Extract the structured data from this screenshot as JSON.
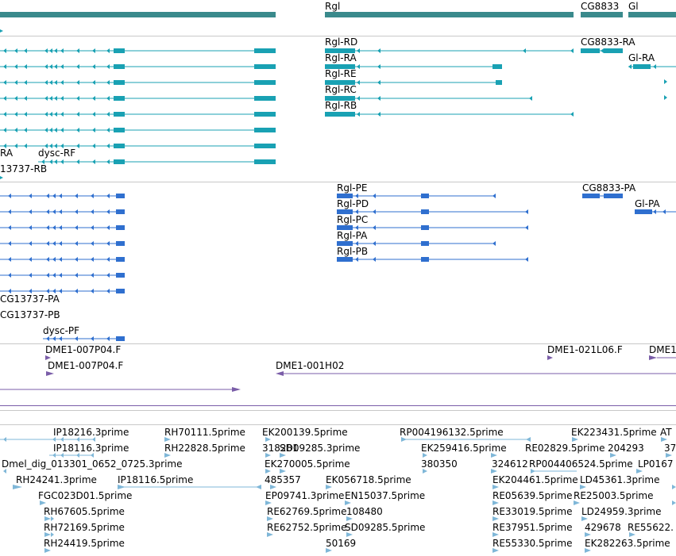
{
  "colors": {
    "gene_span": "#3a8a8c",
    "transcript": "#19a1b3",
    "protein": "#2f6fcf",
    "clone": "#7a5da8",
    "est": "#7fb7d8",
    "separator": "#c8c8c8"
  },
  "tracks": {
    "genes": {
      "labels": [
        "Rgl",
        "CG8833",
        "Gl"
      ]
    },
    "transcripts": {
      "labels": [
        "Rgl-RD",
        "Rgl-RA",
        "Rgl-RE",
        "Rgl-RC",
        "Rgl-RB",
        "CG8833-RA",
        "Gl-RA",
        "RA",
        "dysc-RF",
        "13737-RB"
      ]
    },
    "proteins": {
      "labels": [
        "Rgl-PE",
        "Rgl-PD",
        "Rgl-PC",
        "Rgl-PA",
        "Rgl-PB",
        "CG8833-PA",
        "Gl-PA",
        "CG13737-PA",
        "CG13737-PB",
        "dysc-PF"
      ]
    },
    "clones": {
      "labels": [
        "DME1-007P04.F",
        "DME1-007P04.F",
        "DME1-021L06.F",
        "DME1",
        "DME1-001H02"
      ]
    },
    "ests": {
      "labels": [
        "IP18216.3prime",
        "RH70111.5prime",
        "EK200139.5prime",
        "RP004196132.5prime",
        "EK223431.5prime",
        "AT",
        "IP18116.3prime",
        "RH22828.5prime",
        "318281",
        "SD09285.3prime",
        "EK259416.5prime",
        "RE02829.5prime",
        "204293",
        "37",
        "Dmel_dig_013301_0652_0725.3prime",
        "EK270005.5prime",
        "380350",
        "324612",
        "RP004406524.5prime",
        "LP0167",
        "RH24241.3prime",
        "IP18116.5prime",
        "485357",
        "EK056718.5prime",
        "EK204461.5prime",
        "LD45361.3prime",
        "FGC023D01.5prime",
        "EP09741.3prime",
        "EN15037.5prime",
        "RE05639.5prime",
        "RE25003.5prime",
        "RH67605.5prime",
        "RE62769.5prime",
        "108480",
        "RE33019.5prime",
        "LD24959.3prime",
        "RH72169.5prime",
        "RE62752.5prime",
        "SD09285.5prime",
        "RE37951.5prime",
        "429678",
        "RE55622.",
        "RH24419.5prime",
        "50169",
        "RE55330.5prime",
        "EK282263.5prime"
      ]
    }
  }
}
